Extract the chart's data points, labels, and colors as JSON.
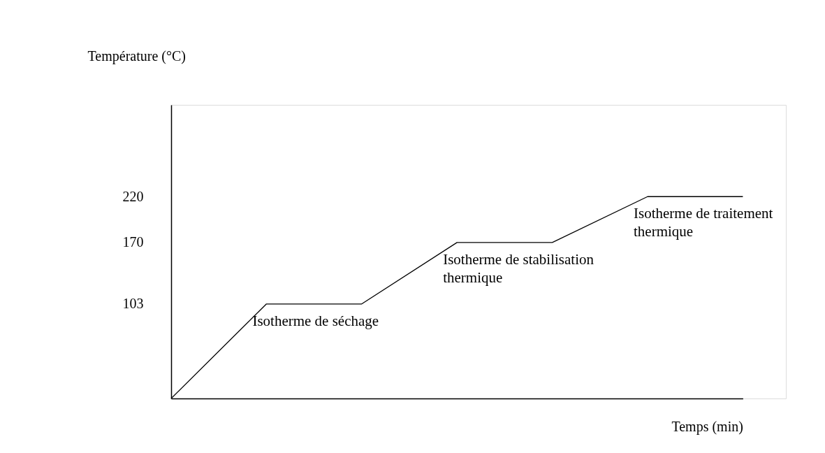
{
  "chart_data": {
    "type": "line",
    "xlabel": "Temps (min)",
    "ylabel": "Température (°C)",
    "categories": [
      null,
      null,
      null,
      null,
      null,
      null,
      null
    ],
    "series": [
      {
        "color": "#000000",
        "values": [
          0,
          103,
          103,
          170,
          170,
          220,
          220
        ]
      }
    ],
    "ylim": [
      0,
      320
    ],
    "yticks": [
      103,
      170,
      220
    ],
    "grid": false,
    "marker": "none",
    "line_style": "solid",
    "tick_labels": "y",
    "annotations": [
      "Isotherme de séchage",
      "Isotherme de stabilisation\nthermique",
      "Isotherme de traitement\nthermique"
    ]
  }
}
